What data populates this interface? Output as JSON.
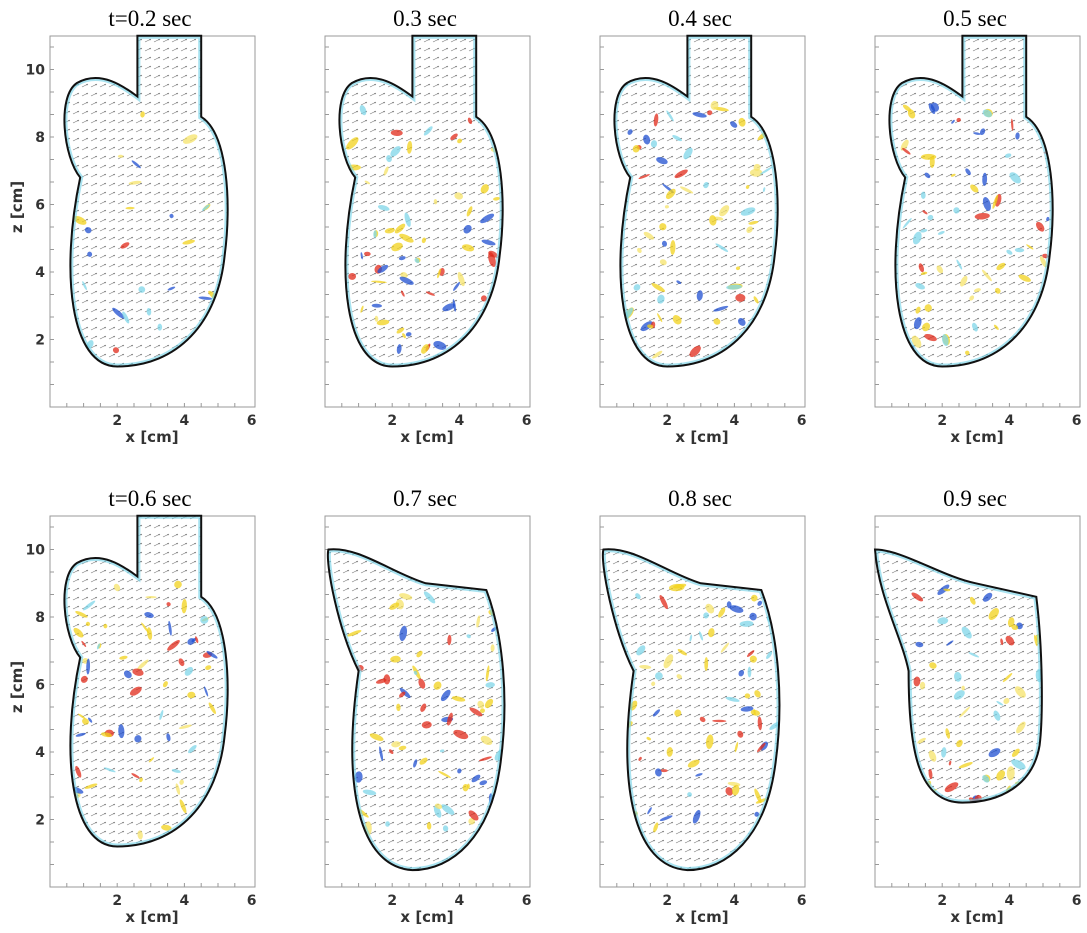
{
  "panels": [
    {
      "title": "t=0.2 sec",
      "xlabel": "x [cm]",
      "xticks": [
        2,
        4,
        6
      ],
      "ylabel": "z [cm]",
      "yticks": [
        2,
        4,
        6,
        8,
        10
      ]
    },
    {
      "title": "0.3 sec",
      "xlabel": "x [cm]",
      "xticks": [
        2,
        4,
        6
      ]
    },
    {
      "title": "0.4 sec",
      "xlabel": "x [cm]",
      "xticks": [
        2,
        4,
        6
      ]
    },
    {
      "title": "0.5 sec",
      "xlabel": "x [cm]",
      "xticks": [
        2,
        4,
        6
      ]
    },
    {
      "title": "t=0.6 sec",
      "xlabel": "x [cm]",
      "xticks": [
        2,
        4,
        6
      ],
      "ylabel": "z [cm]",
      "yticks": [
        2,
        4,
        6,
        8,
        10
      ]
    },
    {
      "title": "0.7 sec",
      "xlabel": "x [cm]",
      "xticks": [
        2,
        4,
        6
      ]
    },
    {
      "title": "0.8 sec",
      "xlabel": "x [cm]",
      "xticks": [
        2,
        4,
        6
      ]
    },
    {
      "title": "0.9 sec",
      "xlabel": "x [cm]",
      "xticks": [
        2,
        4,
        6
      ]
    }
  ]
}
